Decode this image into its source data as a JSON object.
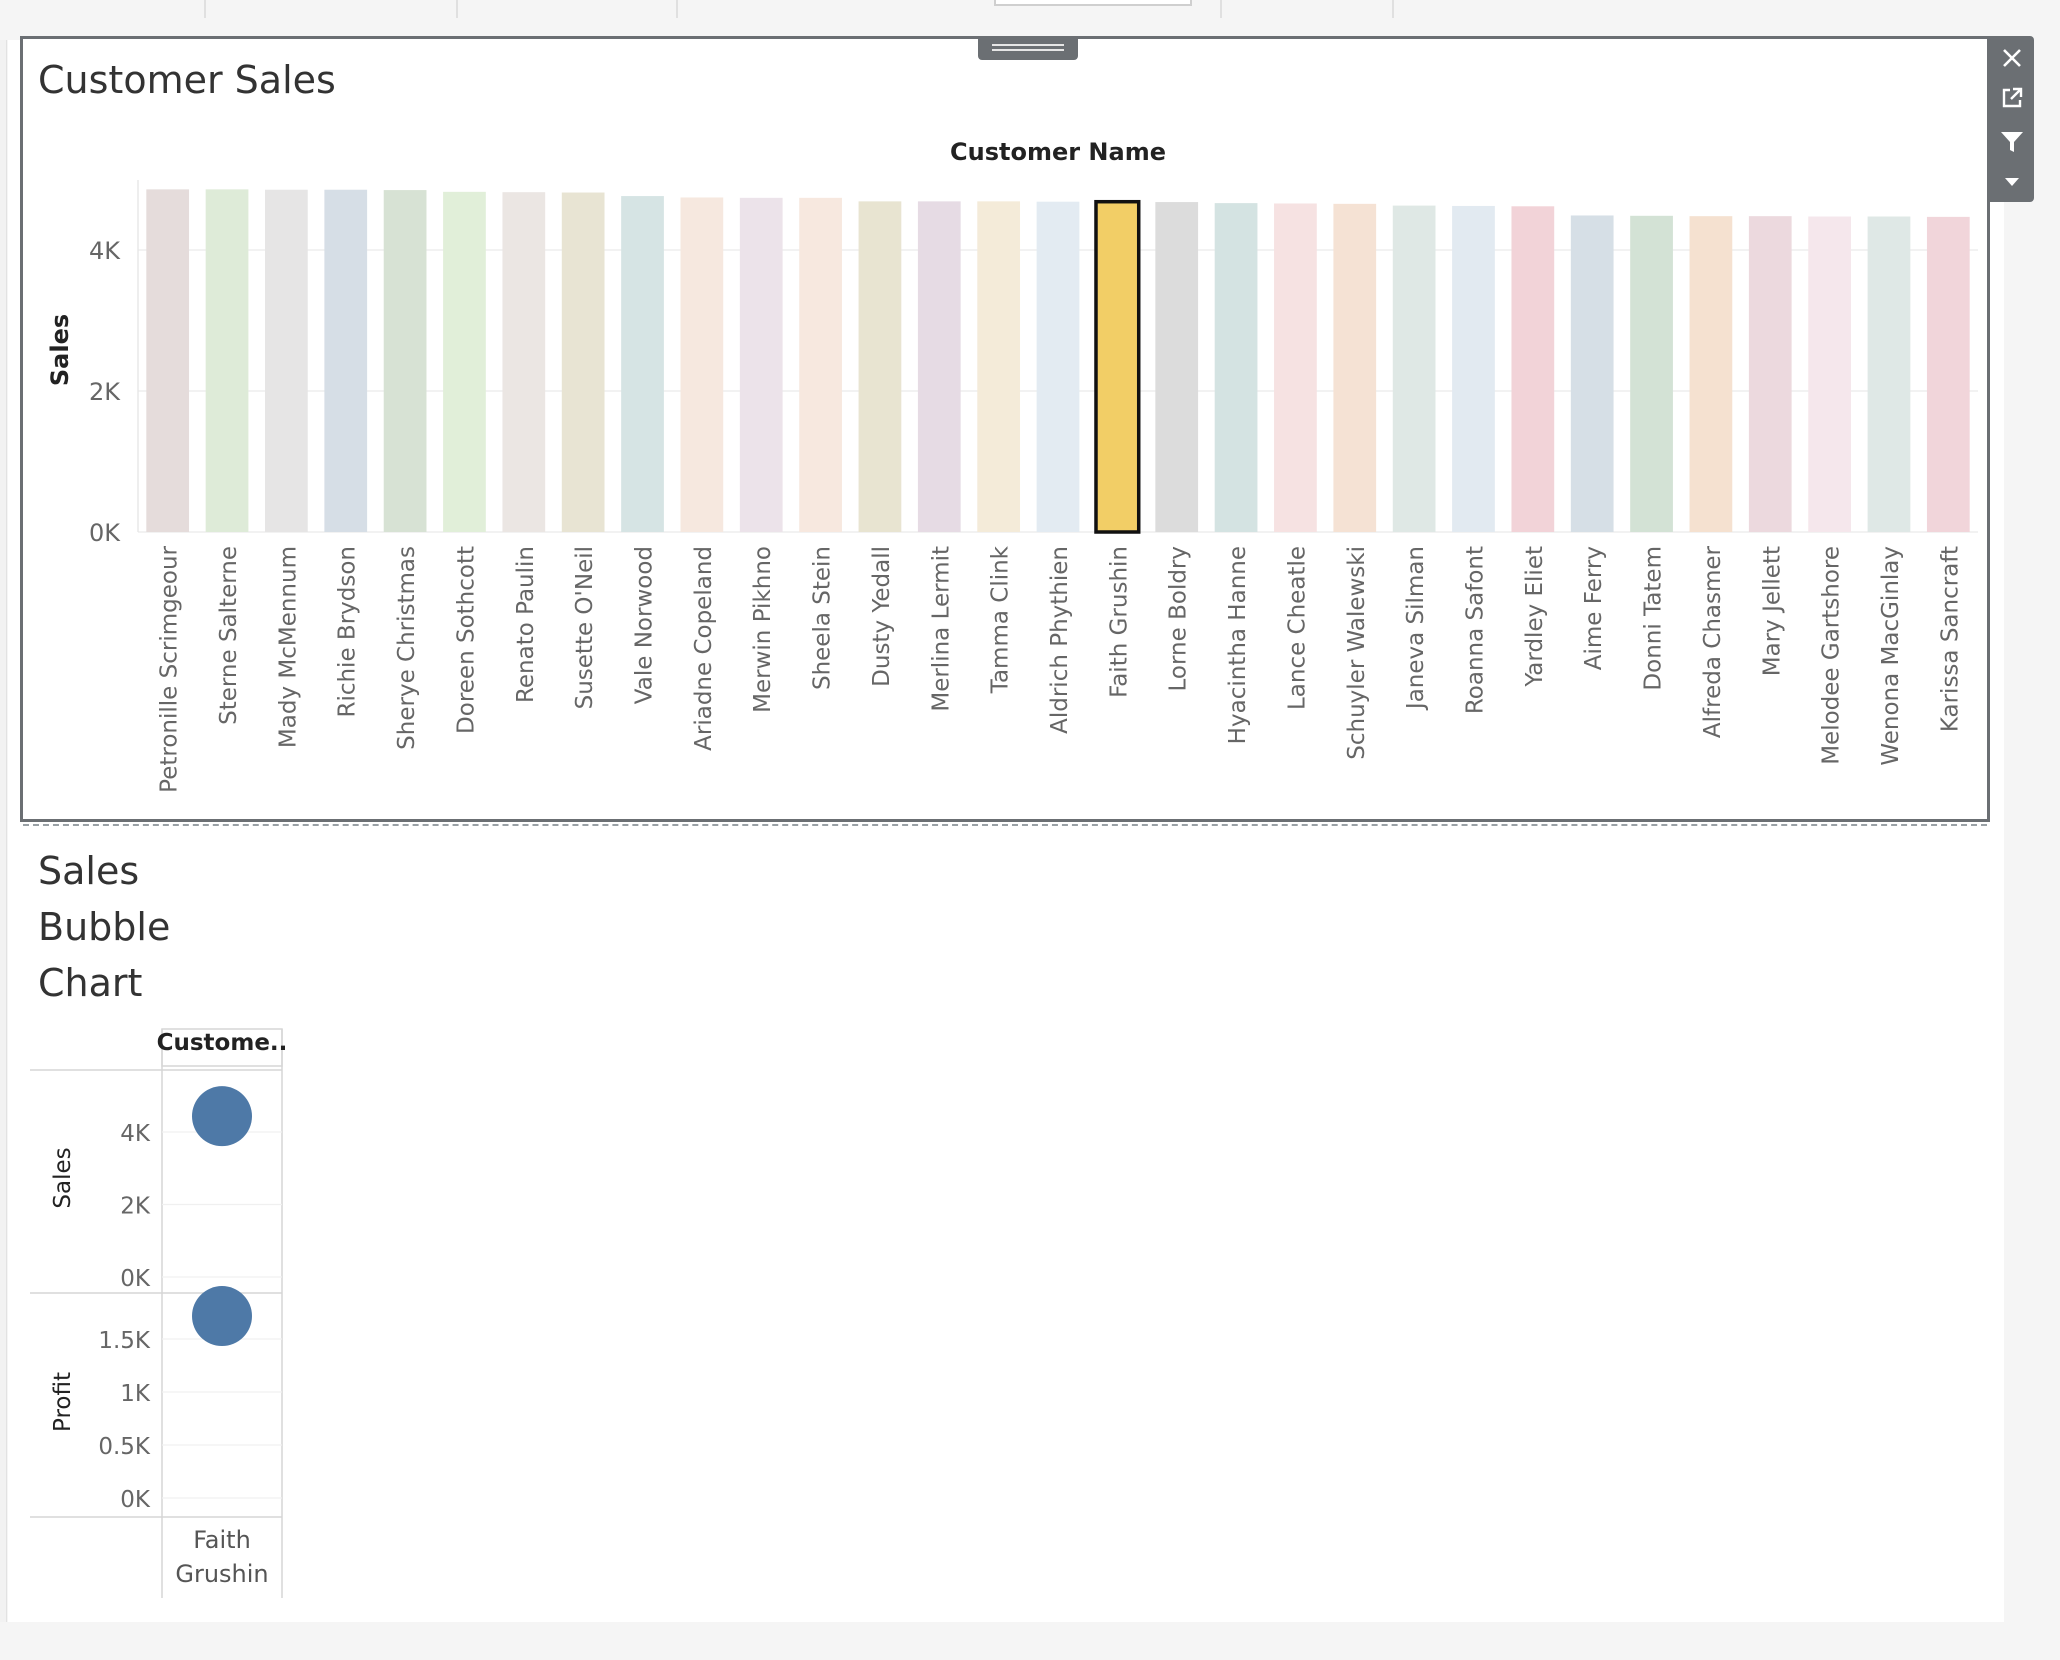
{
  "dashboard": {
    "toolbar": {
      "close_icon": "close-icon",
      "popout_icon": "popout-icon",
      "filter_icon": "filter-icon",
      "more_icon": "dropdown-arrow-icon"
    },
    "color_highlight": "#f2ce66",
    "color_bubble": "#4e79a7"
  },
  "customer_sales": {
    "title": "Customer Sales",
    "xlabel": "Customer Name",
    "ylabel": "Sales",
    "y_ticks": [
      "4K",
      "2K",
      "0K"
    ]
  },
  "bubble": {
    "title_lines": [
      "Sales",
      "Bubble",
      "Chart"
    ],
    "column_header": "Custome..",
    "row_labels": [
      "Sales",
      "Profit"
    ],
    "sales_ticks": [
      "4K",
      "2K",
      "0K"
    ],
    "profit_ticks": [
      "1.5K",
      "1K",
      "0.5K",
      "0K"
    ],
    "customer_lines": [
      "Faith",
      "Grushin"
    ]
  },
  "chart_data": [
    {
      "type": "bar",
      "title": "Customer Sales",
      "xlabel": "Customer Name",
      "ylabel": "Sales",
      "ylim": [
        0,
        5000
      ],
      "selected": "Faith Grushin",
      "categories": [
        "Petronille Scrimgeour",
        "Sterne Salterne",
        "Mady McMennum",
        "Richie Brydson",
        "Sherye Christmas",
        "Doreen Sothcott",
        "Renato Paulin",
        "Susette O'Neil",
        "Vale Norwood",
        "Ariadne Copeland",
        "Merwin Pikhno",
        "Sheela Stein",
        "Dusty Yedall",
        "Merlina Lermit",
        "Tamma Clink",
        "Aldrich Phythien",
        "Faith Grushin",
        "Lorne Boldry",
        "Hyacintha Hanne",
        "Lance Cheatle",
        "Schuyler Walewski",
        "Janeva Silman",
        "Roanna Safont",
        "Yardley Eliet",
        "Aime Ferry",
        "Donni Tatem",
        "Alfreda Chasmer",
        "Mary Jellett",
        "Melodee Gartshore",
        "Wenona MacGinlay",
        "Karissa Sancraft"
      ],
      "values": [
        4860,
        4860,
        4855,
        4855,
        4850,
        4825,
        4820,
        4815,
        4765,
        4745,
        4740,
        4740,
        4690,
        4690,
        4690,
        4685,
        4685,
        4680,
        4665,
        4660,
        4655,
        4630,
        4625,
        4620,
        4490,
        4485,
        4480,
        4480,
        4475,
        4475,
        4470
      ],
      "colors": [
        "#e5dcdb",
        "#deebd8",
        "#e6e5e5",
        "#d6dee6",
        "#d7e2d4",
        "#e1efd9",
        "#ebe6e3",
        "#e8e4d3",
        "#d6e4e4",
        "#f6e8df",
        "#ece3ea",
        "#f7e8df",
        "#e8e4d1",
        "#e6dbe4",
        "#f4ebd9",
        "#e3ebf2",
        "#f2ce66",
        "#dcdcdc",
        "#d4e3e2",
        "#f6e2e2",
        "#f5e2d4",
        "#dfe8e5",
        "#e2eaf1",
        "#f2d3d8",
        "#d6dfe6",
        "#d3e2d5",
        "#f5e1d0",
        "#ecd9de",
        "#f5e7ec",
        "#dfe8e6",
        "#f1d5da"
      ]
    },
    {
      "type": "scatter",
      "title": "Sales Bubble Chart",
      "categories": [
        "Faith Grushin"
      ],
      "series": [
        {
          "name": "Sales",
          "values": [
            4685
          ],
          "ylim": [
            0,
            5500
          ]
        },
        {
          "name": "Profit",
          "values": [
            1660
          ],
          "ylim": [
            0,
            2000
          ]
        }
      ]
    }
  ]
}
